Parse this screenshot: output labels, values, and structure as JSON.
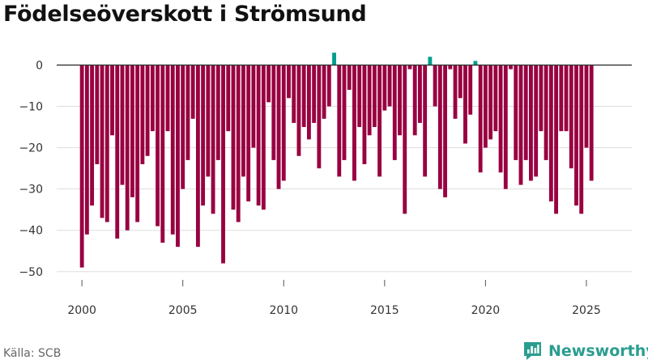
{
  "title": "Födelseöverskott i Strömsund",
  "source": "Källa: SCB",
  "brand": {
    "name": "Newsworthy",
    "color": "#2a9d8f",
    "icon": "newsworthy-logo-icon"
  },
  "colors": {
    "negative": "#990041",
    "positive": "#009e8e",
    "grid": "#dddddd",
    "zero": "#333333"
  },
  "chart_data": {
    "type": "bar",
    "title": "Födelseöverskott i Strömsund",
    "xlabel": "",
    "ylabel": "",
    "frequency": "quarterly",
    "start": 2000,
    "xlim": [
      1998.75,
      2027.25
    ],
    "ylim": [
      -52,
      4
    ],
    "y_ticks": [
      0,
      -10,
      -20,
      -30,
      -40,
      -50
    ],
    "x_ticks": [
      2000,
      2005,
      2010,
      2015,
      2020,
      2025
    ],
    "values": [
      -49,
      -41,
      -34,
      -24,
      -37,
      -38,
      -17,
      -42,
      -29,
      -40,
      -32,
      -38,
      -24,
      -22,
      -16,
      -39,
      -43,
      -16,
      -41,
      -44,
      -30,
      -23,
      -13,
      -44,
      -34,
      -27,
      -36,
      -23,
      -48,
      -16,
      -35,
      -38,
      -27,
      -33,
      -20,
      -34,
      -35,
      -9,
      -23,
      -30,
      -28,
      -8,
      -14,
      -22,
      -15,
      -18,
      -14,
      -25,
      -13,
      -10,
      3,
      -27,
      -23,
      -6,
      -28,
      -15,
      -24,
      -17,
      -15,
      -27,
      -11,
      -10,
      -23,
      -17,
      -36,
      -1,
      -17,
      -14,
      -27,
      2,
      -10,
      -30,
      -32,
      -1,
      -13,
      -8,
      -19,
      -12,
      1,
      -26,
      -20,
      -18,
      -16,
      -26,
      -30,
      -1,
      -23,
      -29,
      -23,
      -28,
      -27,
      -16,
      -23,
      -33,
      -36,
      -16,
      -16,
      -25,
      -34,
      -36,
      -20,
      -28
    ]
  }
}
